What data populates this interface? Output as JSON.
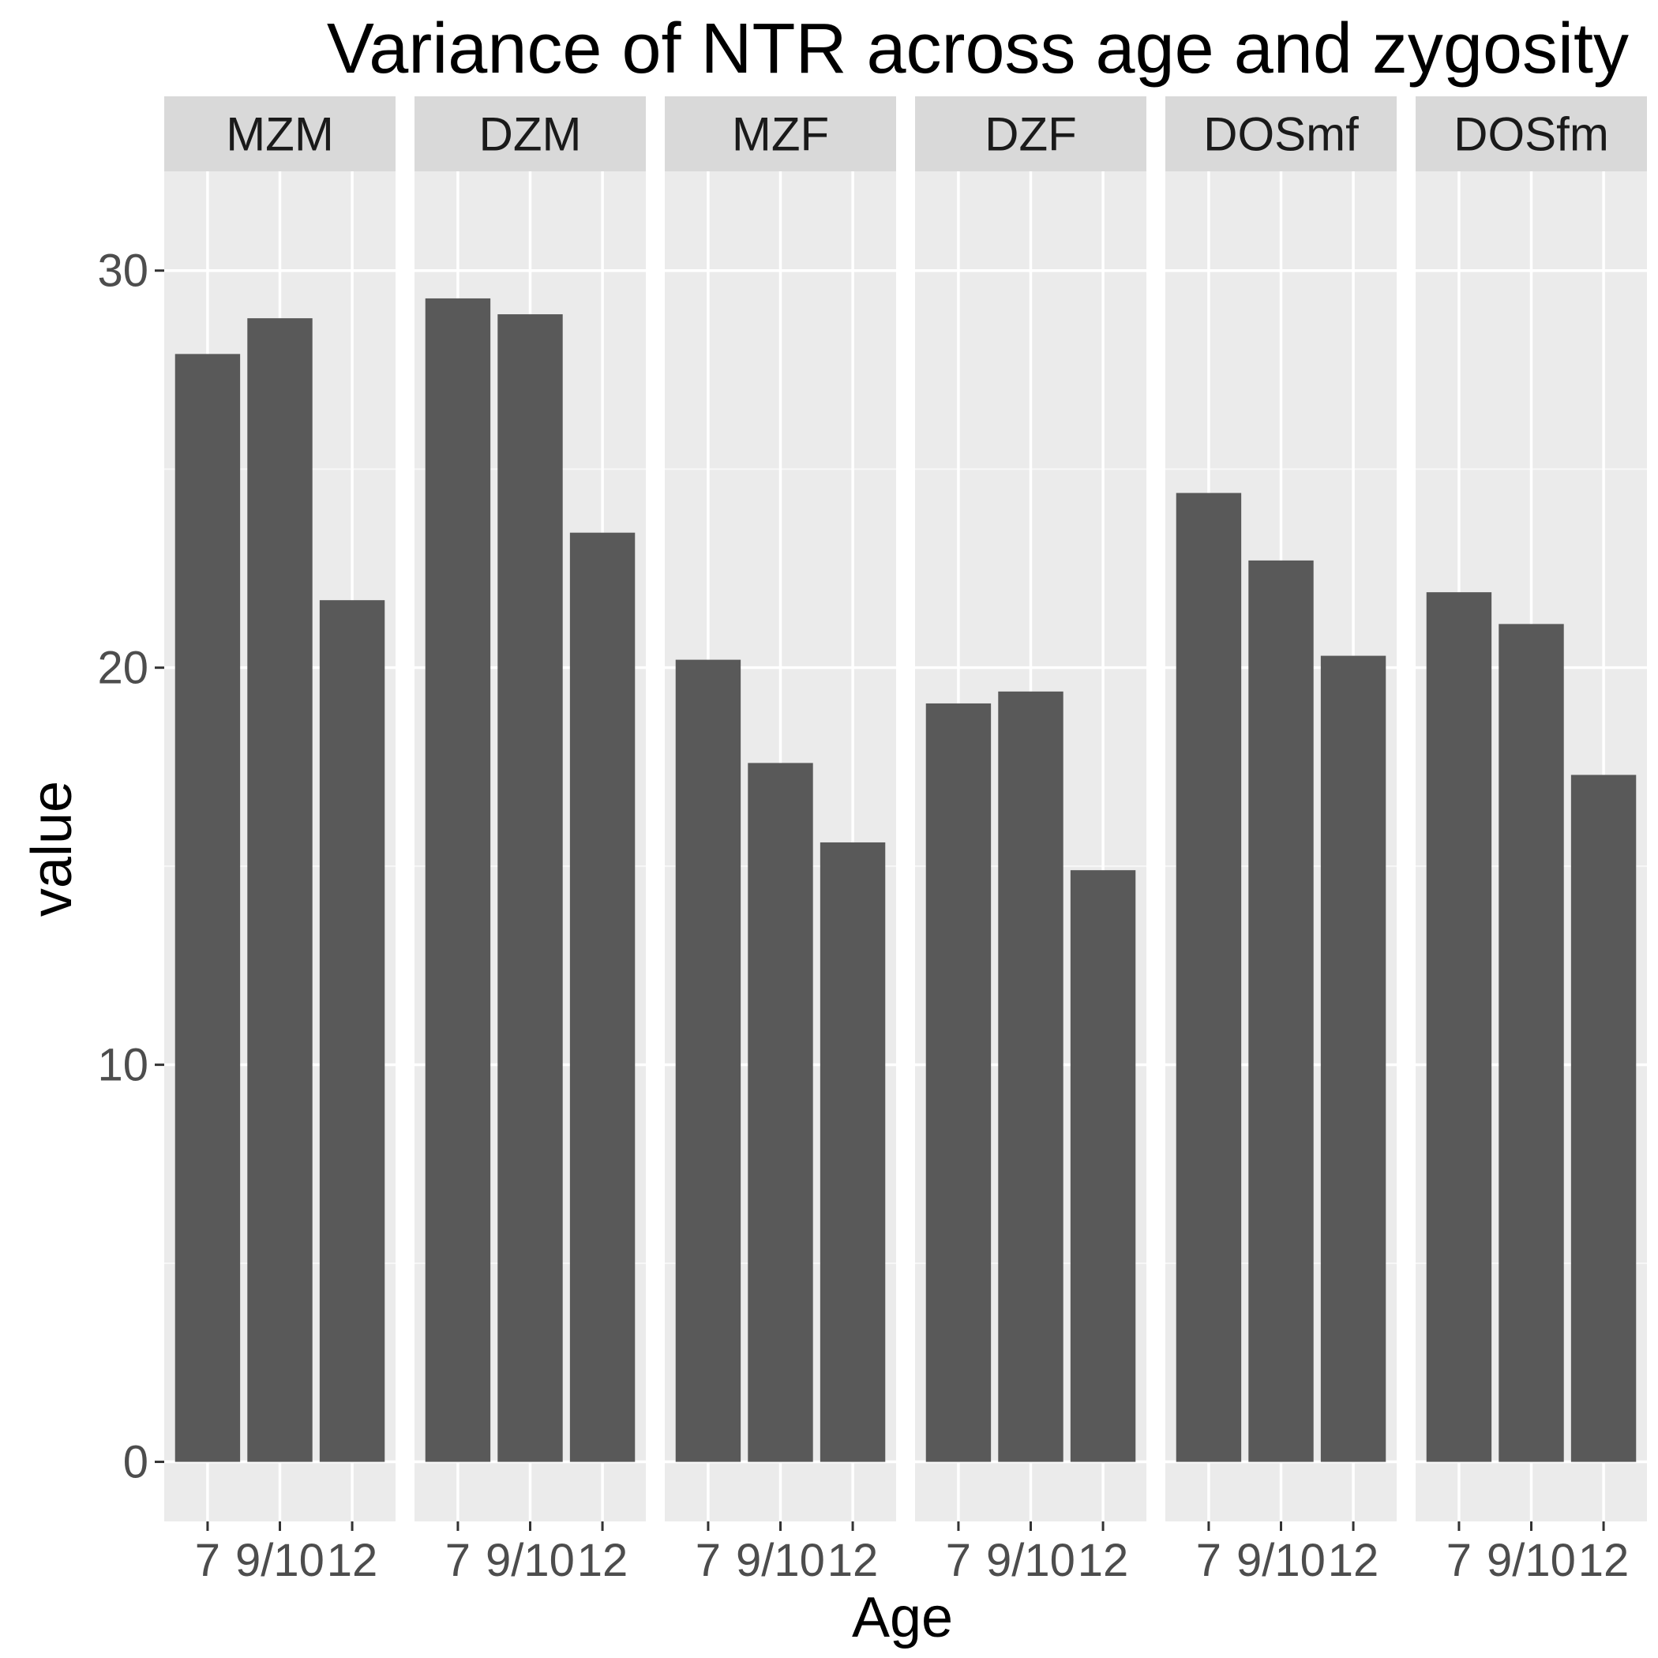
{
  "chart_data": {
    "type": "bar",
    "title": "Variance of NTR across age and zygosity",
    "xlabel": "Age",
    "ylabel": "value",
    "facet_by": "zygosity",
    "ylim": [
      -1.5,
      32.5
    ],
    "y_ticks": [
      0,
      10,
      20,
      30
    ],
    "y_tick_labels": [
      "0",
      "10",
      "20",
      "30"
    ],
    "categories": [
      "7",
      "9/10",
      "12"
    ],
    "bar_color": "#595959",
    "panel_background": "#ebebeb",
    "strip_background": "#d9d9d9",
    "grid": true,
    "panels": [
      {
        "label": "MZM",
        "values": [
          27.9,
          28.8,
          21.7
        ]
      },
      {
        "label": "DZM",
        "values": [
          29.3,
          28.9,
          23.4
        ]
      },
      {
        "label": "MZF",
        "values": [
          20.2,
          17.6,
          15.6
        ]
      },
      {
        "label": "DZF",
        "values": [
          19.1,
          19.4,
          14.9
        ]
      },
      {
        "label": "DOSmf",
        "values": [
          24.4,
          22.7,
          20.3
        ]
      },
      {
        "label": "DOSfm",
        "values": [
          21.9,
          21.1,
          17.3
        ]
      }
    ]
  }
}
